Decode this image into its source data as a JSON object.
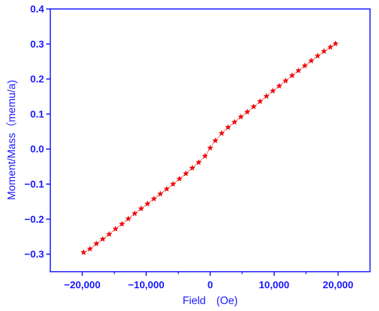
{
  "chart_data": {
    "type": "scatter",
    "title": "",
    "xlabel": "Field　(Oe)",
    "ylabel": "Moment/Mass（memu/a)",
    "xlim": [
      -25000,
      25000
    ],
    "ylim": [
      -0.35,
      0.4
    ],
    "x_ticks": [
      -20000,
      -10000,
      0,
      10000,
      20000
    ],
    "x_tick_labels": [
      "−20,000",
      "−10,000",
      "0",
      "10,000",
      "20,000"
    ],
    "y_ticks": [
      -0.3,
      -0.2,
      -0.1,
      0.0,
      0.1,
      0.2,
      0.3,
      0.4
    ],
    "y_tick_labels": [
      "−0.3",
      "−0.2",
      "−0.1",
      "0.0",
      "0.1",
      "0.2",
      "0.3",
      "0.4"
    ],
    "grid": false,
    "legend": "none",
    "colors": {
      "axis": "#1a1aff",
      "series": "#ff0000"
    },
    "series": [
      {
        "name": "",
        "marker": "star",
        "x": [
          -19800,
          -18800,
          -17800,
          -16800,
          -15800,
          -14800,
          -13800,
          -12800,
          -11800,
          -10800,
          -9800,
          -8800,
          -7800,
          -6800,
          -5800,
          -4800,
          -3800,
          -2800,
          -1800,
          -800,
          0,
          800,
          1800,
          2800,
          3800,
          4800,
          5800,
          6800,
          7800,
          8800,
          9800,
          10800,
          11800,
          12800,
          13800,
          14800,
          15800,
          16800,
          17800,
          18800,
          19600
        ],
        "y": [
          -0.295,
          -0.285,
          -0.27,
          -0.257,
          -0.243,
          -0.228,
          -0.214,
          -0.199,
          -0.184,
          -0.17,
          -0.156,
          -0.142,
          -0.128,
          -0.114,
          -0.1,
          -0.085,
          -0.07,
          -0.054,
          -0.038,
          -0.02,
          0.003,
          0.024,
          0.045,
          0.062,
          0.077,
          0.092,
          0.106,
          0.121,
          0.136,
          0.151,
          0.166,
          0.18,
          0.195,
          0.21,
          0.224,
          0.238,
          0.252,
          0.266,
          0.279,
          0.291,
          0.301
        ]
      }
    ]
  }
}
